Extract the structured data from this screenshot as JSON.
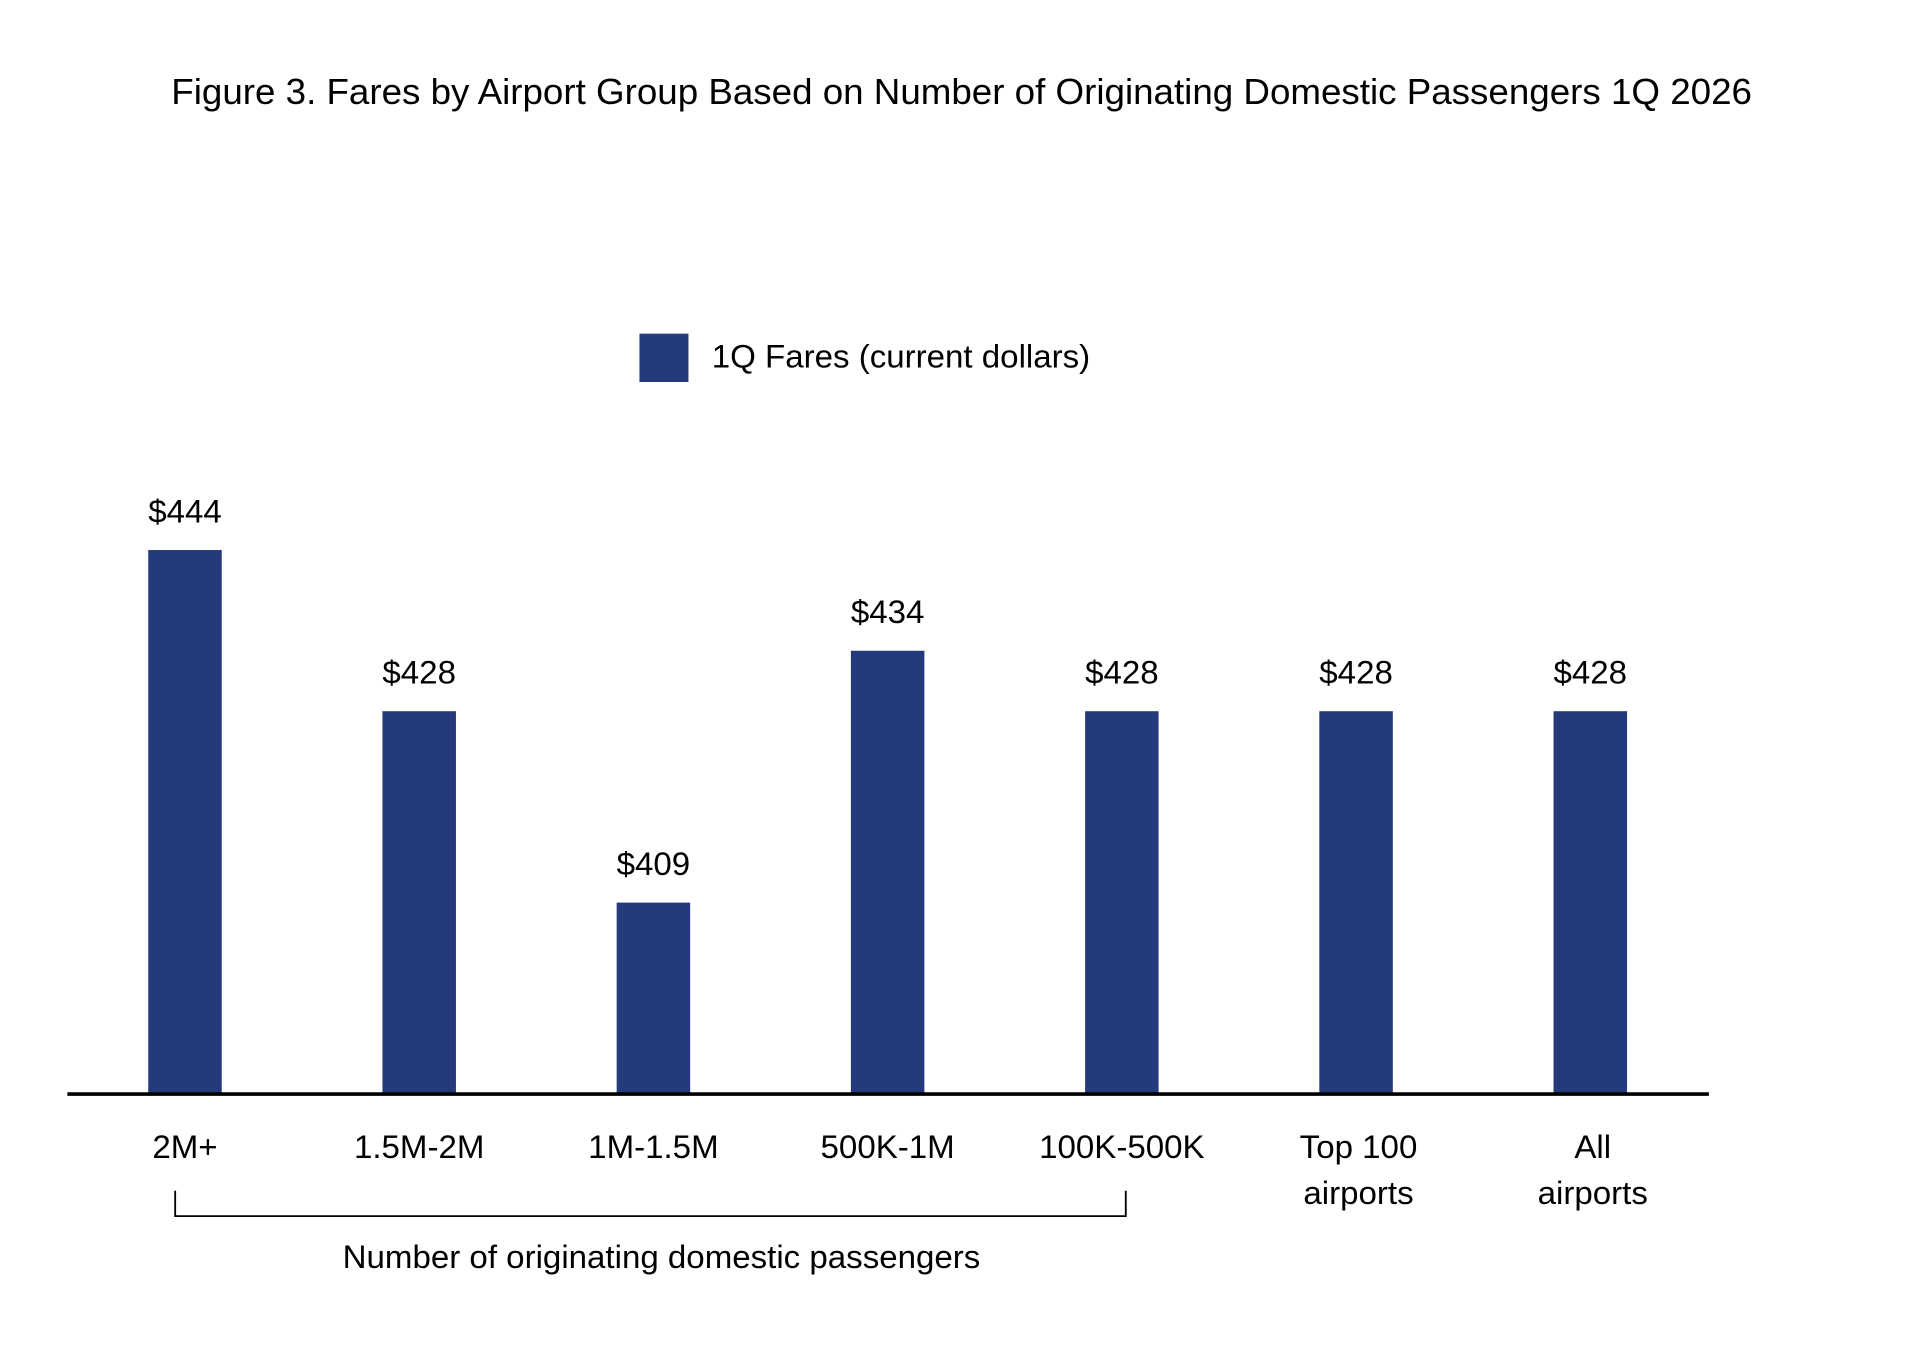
{
  "chart_data": {
    "type": "bar",
    "title": "Figure 3. Fares by Airport Group Based on Number of Originating Domestic Passengers 1Q 2026",
    "categories": [
      "2M+",
      "1.5M-2M",
      "1M-1.5M",
      "500K-1M",
      "100K-500K",
      [
        "Top 100",
        "airports"
      ],
      [
        "All",
        "airports"
      ]
    ],
    "series": [
      {
        "name": "1Q Fares (current dollars)",
        "color": "#243a7c",
        "values": [
          444,
          428,
          409,
          434,
          428,
          428,
          428
        ],
        "value_labels": [
          "$444",
          "$428",
          "$409",
          "$434",
          "$428",
          "$428",
          "$428"
        ]
      }
    ],
    "ylim": [
      390,
      450
    ],
    "group_label": "Number of originating domestic passengers"
  }
}
